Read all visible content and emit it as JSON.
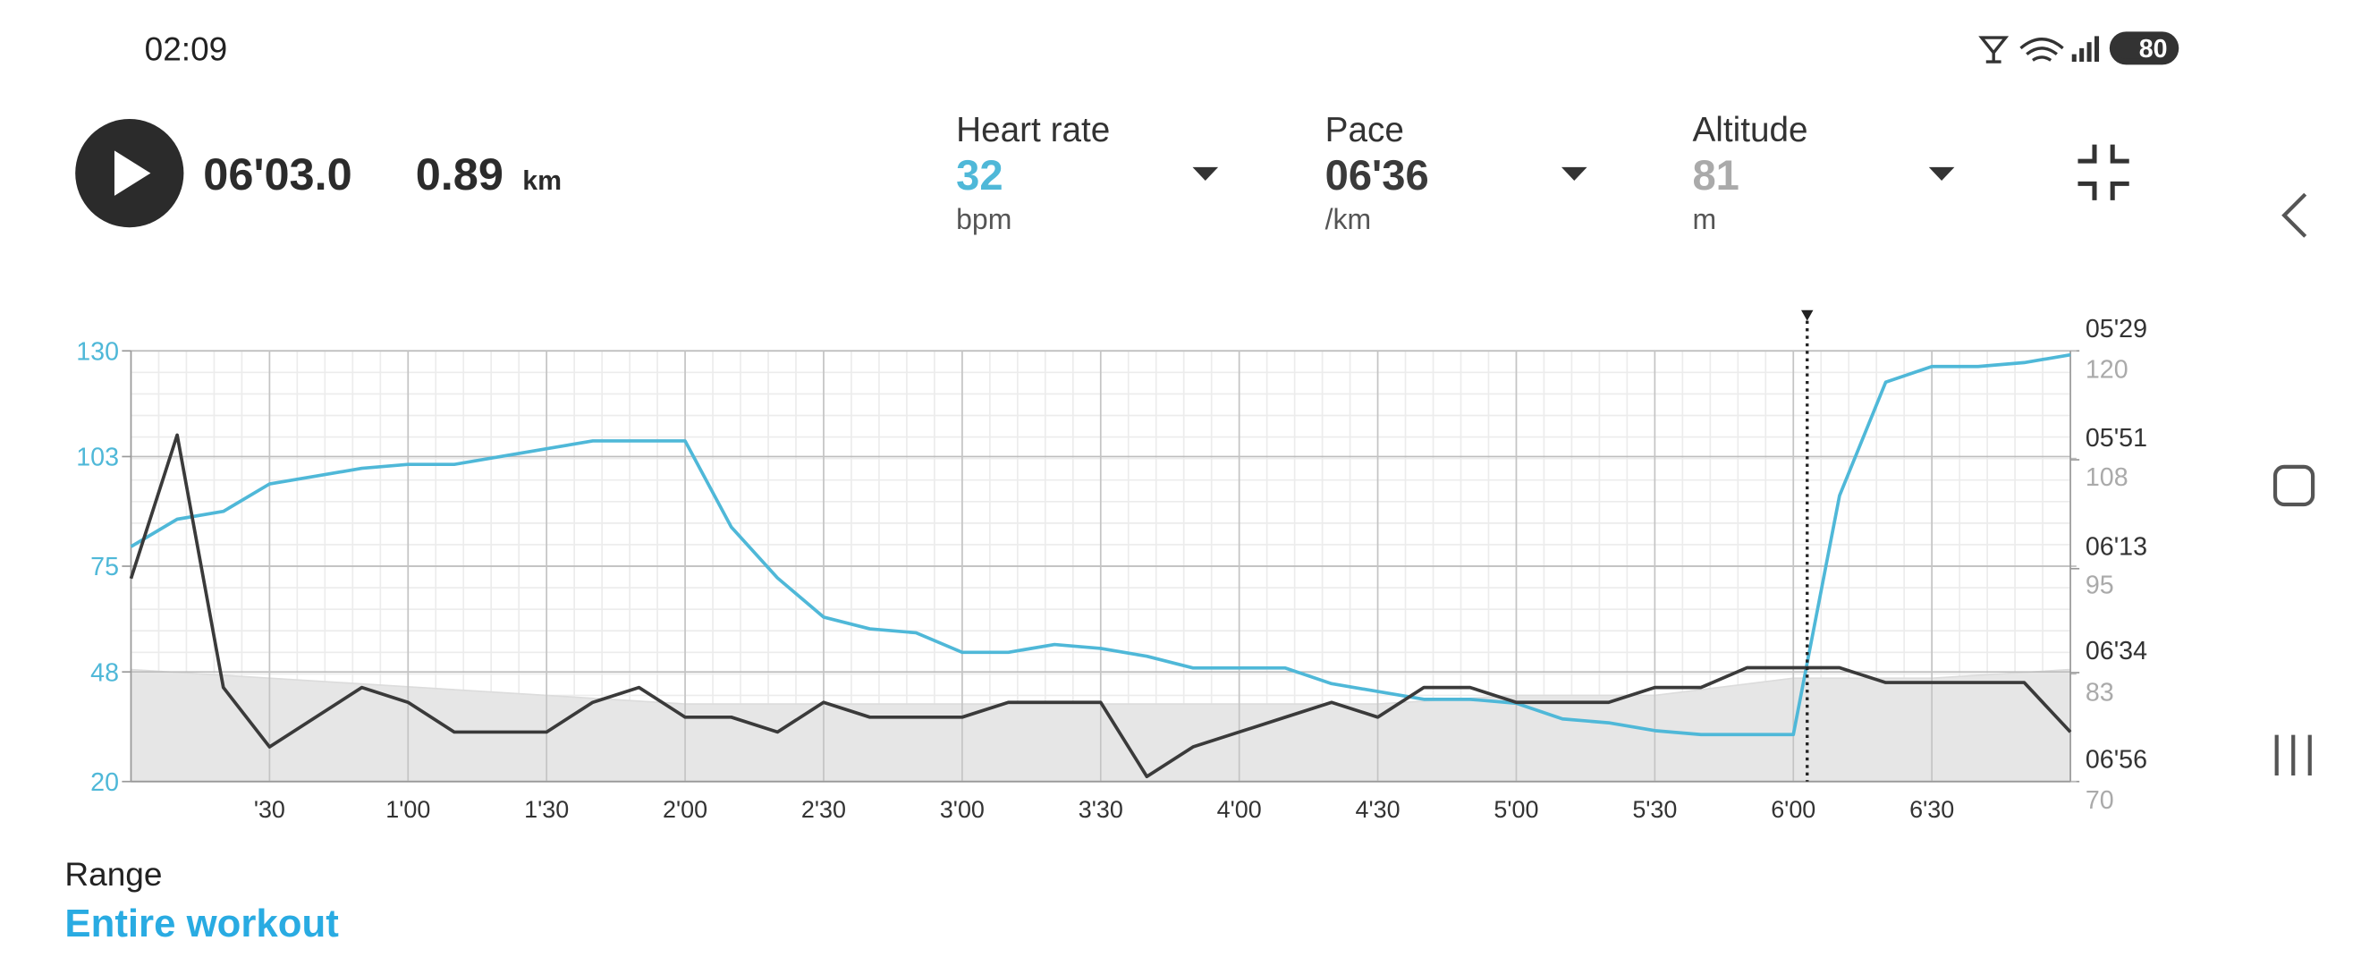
{
  "status_bar": {
    "time": "02:09",
    "battery": 80
  },
  "header": {
    "elapsed": "06'03.0",
    "distance": 0.89,
    "distance_unit": "km"
  },
  "metrics": [
    {
      "label": "Heart rate",
      "value": 32,
      "unit": "bpm"
    },
    {
      "label": "Pace",
      "value": "06'36",
      "unit": "/km"
    },
    {
      "label": "Altitude",
      "value": 81,
      "unit": "m"
    }
  ],
  "chart_data": {
    "type": "line",
    "x": [
      0,
      10,
      20,
      30,
      40,
      50,
      60,
      70,
      80,
      90,
      100,
      110,
      120,
      130,
      140,
      150,
      160,
      170,
      180,
      190,
      200,
      210,
      220,
      230,
      240,
      250,
      260,
      270,
      280,
      290,
      300,
      310,
      320,
      330,
      340,
      350,
      360,
      370,
      380,
      390,
      400,
      410,
      420
    ],
    "xlim": [
      0,
      420
    ],
    "xticks": [
      {
        "value": 30,
        "label": "'30"
      },
      {
        "value": 60,
        "label": "1'00"
      },
      {
        "value": 90,
        "label": "1'30"
      },
      {
        "value": 120,
        "label": "2'00"
      },
      {
        "value": 150,
        "label": "2'30"
      },
      {
        "value": 180,
        "label": "3'00"
      },
      {
        "value": 210,
        "label": "3'30"
      },
      {
        "value": 240,
        "label": "4'00"
      },
      {
        "value": 270,
        "label": "4'30"
      },
      {
        "value": 300,
        "label": "5'00"
      },
      {
        "value": 330,
        "label": "5'30"
      },
      {
        "value": 360,
        "label": "6'00"
      },
      {
        "value": 390,
        "label": "6'30"
      }
    ],
    "ylim": [
      20,
      130
    ],
    "yticks": [
      20,
      48,
      75,
      103,
      130
    ],
    "y2lim": [
      416,
      329
    ],
    "y2ticks": [
      {
        "value": 329,
        "label": "05'29"
      },
      {
        "value": 351,
        "label": "05'51"
      },
      {
        "value": 373,
        "label": "06'13"
      },
      {
        "value": 394,
        "label": "06'34"
      },
      {
        "value": 416,
        "label": "06'56"
      }
    ],
    "y3lim": [
      70,
      120
    ],
    "y3ticks": [
      {
        "value": 120,
        "label": "120"
      },
      {
        "value": 107.5,
        "label": "108"
      },
      {
        "value": 95,
        "label": "95"
      },
      {
        "value": 82.5,
        "label": "83"
      },
      {
        "value": 70,
        "label": "70"
      }
    ],
    "grid": true,
    "cursor": 363,
    "series": [
      {
        "name": "Heart rate",
        "color": "#4fb8d8",
        "axis": "y",
        "values": [
          80,
          87,
          89,
          96,
          98,
          100,
          101,
          101,
          103,
          105,
          107,
          107,
          107,
          85,
          72,
          62,
          59,
          58,
          53,
          53,
          55,
          54,
          52,
          49,
          49,
          49,
          45,
          43,
          41,
          41,
          40,
          36,
          35,
          33,
          32,
          32,
          32,
          93,
          122,
          126,
          126,
          127,
          129
        ]
      },
      {
        "name": "Pace",
        "color": "#3a3a3a",
        "axis": "y2",
        "values": [
          375,
          346,
          397,
          409,
          403,
          397,
          400,
          406,
          406,
          406,
          400,
          397,
          403,
          403,
          406,
          400,
          403,
          403,
          403,
          400,
          400,
          400,
          415,
          409,
          406,
          403,
          400,
          403,
          397,
          397,
          400,
          400,
          400,
          397,
          397,
          393,
          393,
          393,
          396,
          396,
          396,
          396,
          406
        ]
      },
      {
        "name": "Altitude",
        "color": "#e6e6e6",
        "axis": "y3",
        "x": [
          0,
          30,
          60,
          90,
          120,
          150,
          180,
          210,
          240,
          270,
          300,
          330,
          360,
          390,
          420
        ],
        "values": [
          83,
          82,
          81,
          80,
          79,
          79,
          79,
          79,
          79,
          79,
          80,
          80,
          82,
          82,
          83
        ]
      }
    ]
  },
  "range": {
    "label": "Range",
    "value": "Entire workout"
  }
}
